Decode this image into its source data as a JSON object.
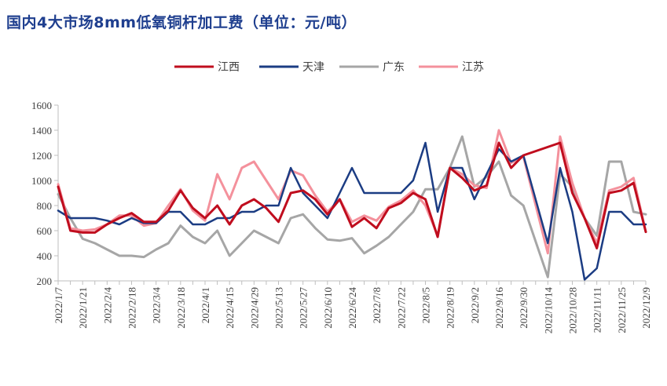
{
  "chart_data": {
    "type": "line",
    "title": "国内4大市场8mm低氧铜杆加工费（单位：元/吨）",
    "xlabel": "",
    "ylabel": "",
    "ylim": [
      200,
      1600
    ],
    "yticks": [
      200,
      400,
      600,
      800,
      1000,
      1200,
      1400,
      1600
    ],
    "grid": false,
    "legend_position": "top",
    "x": [
      "2022/1/7",
      "2022/1/14",
      "2022/1/21",
      "2022/1/28",
      "2022/2/4",
      "2022/2/11",
      "2022/2/18",
      "2022/2/25",
      "2022/3/4",
      "2022/3/11",
      "2022/3/18",
      "2022/3/25",
      "2022/4/1",
      "2022/4/8",
      "2022/4/15",
      "2022/4/22",
      "2022/4/29",
      "2022/5/6",
      "2022/5/13",
      "2022/5/20",
      "2022/5/27",
      "2022/6/3",
      "2022/6/10",
      "2022/6/17",
      "2022/6/24",
      "2022/7/1",
      "2022/7/8",
      "2022/7/15",
      "2022/7/22",
      "2022/7/29",
      "2022/8/5",
      "2022/8/12",
      "2022/8/19",
      "2022/8/26",
      "2022/9/2",
      "2022/9/9",
      "2022/9/16",
      "2022/9/23",
      "2022/9/30",
      "2022/10/7",
      "2022/10/14",
      "2022/10/21",
      "2022/10/28",
      "2022/11/4",
      "2022/11/11",
      "2022/11/18",
      "2022/11/25",
      "2022/12/2",
      "2022/12/9"
    ],
    "x_tick_labels": [
      "2022/1/7",
      "2022/1/21",
      "2022/2/4",
      "2022/2/18",
      "2022/3/4",
      "2022/3/18",
      "2022/4/1",
      "2022/4/15",
      "2022/4/29",
      "2022/5/13",
      "2022/5/27",
      "2022/6/10",
      "2022/6/24",
      "2022/7/8",
      "2022/7/22",
      "2022/8/5",
      "2022/8/19",
      "2022/9/2",
      "2022/9/16",
      "2022/9/30",
      "2022/10/14",
      "2022/10/28",
      "2022/11/11",
      "2022/11/25",
      "2022/12/9"
    ],
    "series": [
      {
        "name": "江西",
        "color": "#c00d1e",
        "width": 3,
        "values": [
          950,
          600,
          585,
          585,
          650,
          700,
          740,
          670,
          670,
          760,
          920,
          780,
          700,
          800,
          650,
          800,
          850,
          780,
          670,
          900,
          920,
          850,
          730,
          850,
          630,
          700,
          620,
          780,
          820,
          900,
          850,
          550,
          1100,
          1020,
          920,
          960,
          1300,
          1100,
          1200,
          null,
          null,
          1300,
          900,
          700,
          460,
          900,
          920,
          980,
          590
        ]
      },
      {
        "name": "天津",
        "color": "#1b3c83",
        "width": 2.5,
        "values": [
          760,
          700,
          700,
          700,
          680,
          650,
          700,
          660,
          660,
          750,
          750,
          650,
          650,
          700,
          700,
          750,
          750,
          800,
          800,
          1100,
          900,
          800,
          700,
          900,
          1100,
          900,
          900,
          900,
          900,
          1000,
          1300,
          750,
          1100,
          1100,
          850,
          null,
          1250,
          1150,
          1200,
          null,
          500,
          1100,
          750,
          210,
          300,
          750,
          750,
          650,
          650
        ]
      },
      {
        "name": "广东",
        "color": "#a6a6a6",
        "width": 3,
        "values": [
          890,
          700,
          535,
          500,
          450,
          400,
          400,
          390,
          450,
          500,
          640,
          550,
          500,
          600,
          400,
          500,
          600,
          550,
          500,
          700,
          730,
          620,
          530,
          520,
          540,
          420,
          480,
          550,
          650,
          750,
          930,
          930,
          1100,
          1350,
          950,
          1030,
          1150,
          880,
          800,
          null,
          230,
          1050,
          950,
          700,
          560,
          1150,
          1150,
          750,
          730
        ]
      },
      {
        "name": "江苏",
        "color": "#f4919c",
        "width": 3,
        "values": [
          970,
          620,
          600,
          610,
          650,
          720,
          720,
          640,
          660,
          800,
          930,
          760,
          680,
          1050,
          850,
          1100,
          1150,
          1000,
          850,
          1080,
          1040,
          880,
          750,
          850,
          670,
          720,
          680,
          790,
          840,
          920,
          800,
          560,
          1100,
          1050,
          960,
          940,
          1400,
          1140,
          1190,
          null,
          420,
          1350,
          980,
          700,
          500,
          920,
          950,
          1020,
          590
        ]
      }
    ]
  }
}
